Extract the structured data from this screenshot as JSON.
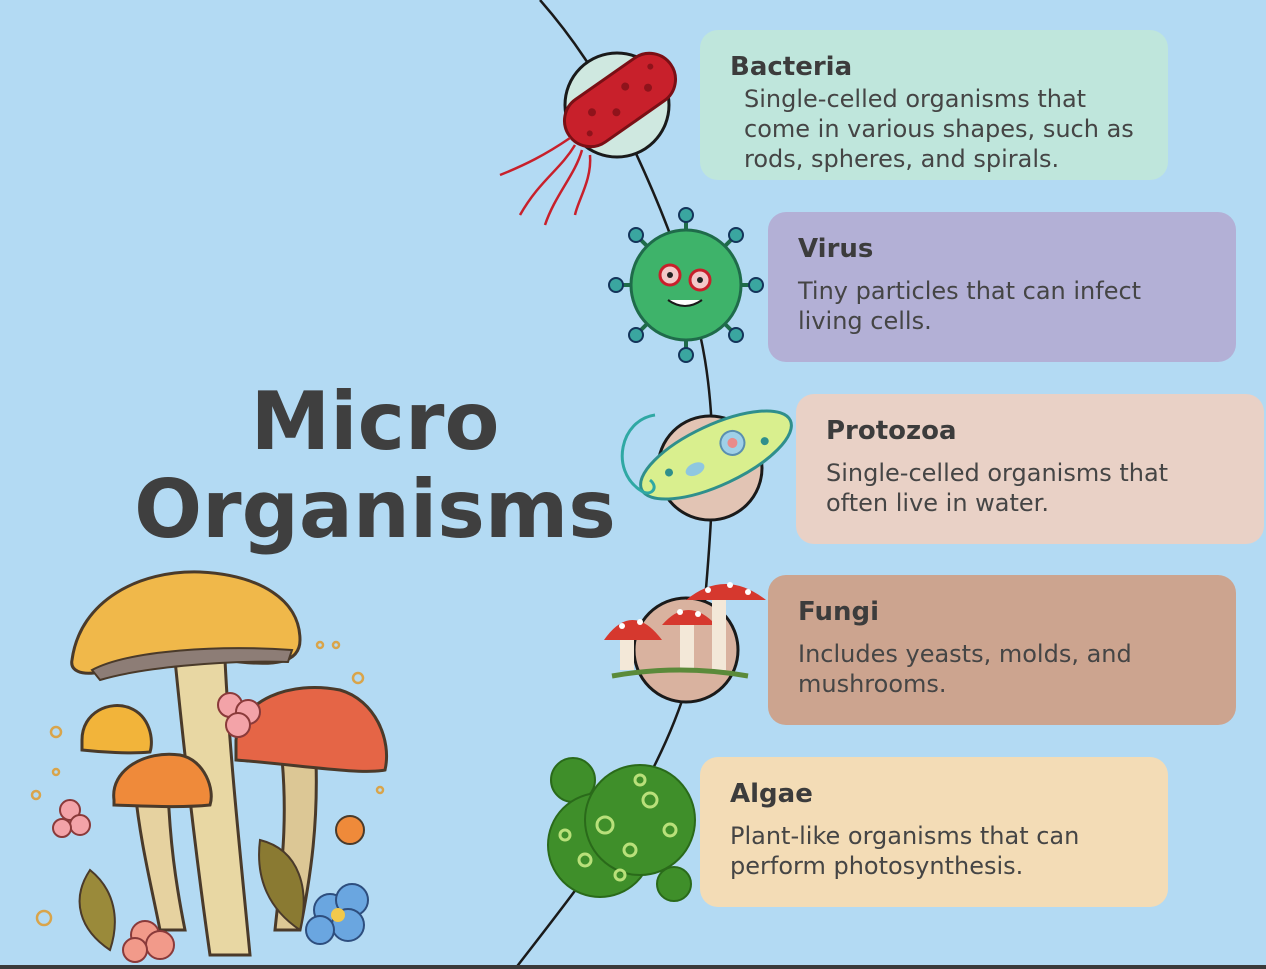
{
  "title": {
    "line1": "Micro",
    "line2": "Organisms"
  },
  "organisms": [
    {
      "name": "Bacteria",
      "description": "Single-celled organisms that come in various shapes, such as rods, spheres, and spirals.",
      "card_color": "#bfe6dc",
      "icon": "bacteria-icon"
    },
    {
      "name": "Virus",
      "description": "Tiny particles that can infect living cells.",
      "card_color": "#b3b0d6",
      "icon": "virus-icon"
    },
    {
      "name": "Protozoa",
      "description": "Single-celled organisms that often live in water.",
      "card_color": "#e9d1c6",
      "icon": "protozoa-icon"
    },
    {
      "name": "Fungi",
      "description": "Includes yeasts, molds, and mushrooms.",
      "card_color": "#cca48f",
      "icon": "fungi-icon"
    },
    {
      "name": "Algae",
      "description": "Plant-like organisms that can perform photosynthesis.",
      "card_color": "#f3dcb6",
      "icon": "algae-icon"
    }
  ],
  "colors": {
    "background": "#b3daf3",
    "title_text": "#3f3f3f",
    "timeline_line": "#1a1a1a"
  }
}
